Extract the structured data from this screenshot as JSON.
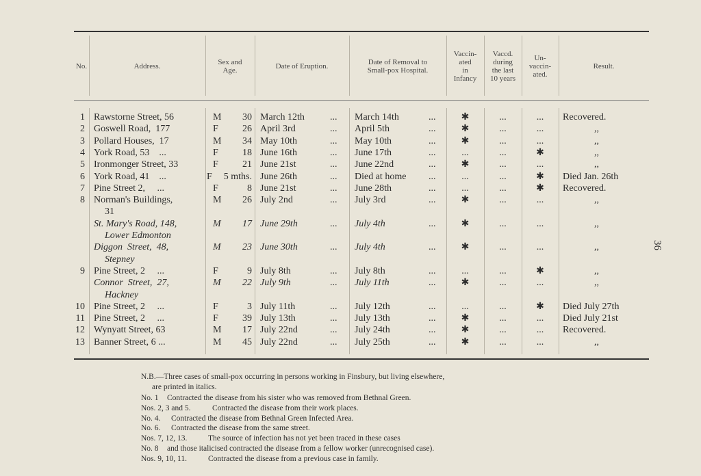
{
  "page_number": "36",
  "table": {
    "headers": [
      [
        "No."
      ],
      [
        "Address."
      ],
      [
        "Sex and",
        "Age."
      ],
      [
        "Date of  Eruption."
      ],
      [
        "Date of Removal to",
        "Small-pox Hospital."
      ],
      [
        "Vaccin-",
        "ated",
        "in",
        "Infancy"
      ],
      [
        "Vaccd.",
        "during",
        "the last",
        "10 years"
      ],
      [
        "Un-",
        "vaccin-",
        "ated."
      ],
      [
        "Result."
      ]
    ],
    "rows": [
      {
        "no": "1",
        "address": [
          "Rawstorne Street, 56"
        ],
        "sex": "M",
        "age": "30",
        "eruption": [
          "March 12th",
          "..."
        ],
        "removal": [
          "March 14th",
          "..."
        ],
        "infancy": "✱",
        "recent": "...",
        "unvaccinated": "...",
        "result": "Recovered.",
        "italic": false
      },
      {
        "no": "2",
        "address": [
          "Goswell Road,  177"
        ],
        "sex": "F",
        "age": "26",
        "eruption": [
          "April 3rd",
          "..."
        ],
        "removal": [
          "April 5th",
          "..."
        ],
        "infancy": "✱",
        "recent": "...",
        "unvaccinated": "...",
        "result": ",,",
        "italic": false
      },
      {
        "no": "3",
        "address": [
          "Pollard Houses,  17"
        ],
        "sex": "M",
        "age": "34",
        "eruption": [
          "May 10th",
          "..."
        ],
        "removal": [
          "May 10th",
          "..."
        ],
        "infancy": "✱",
        "recent": "...",
        "unvaccinated": "...",
        "result": ",,",
        "italic": false
      },
      {
        "no": "4",
        "address": [
          "York Road, 53    ..."
        ],
        "sex": "F",
        "age": "18",
        "eruption": [
          "June 16th",
          "..."
        ],
        "removal": [
          "June 17th",
          "..."
        ],
        "infancy": "...",
        "recent": "...",
        "unvaccinated": "✱",
        "result": ",,",
        "italic": false
      },
      {
        "no": "5",
        "address": [
          "Ironmonger Street, 33"
        ],
        "sex": "F",
        "age": "21",
        "eruption": [
          "June 21st",
          "..."
        ],
        "removal": [
          "June 22nd",
          "..."
        ],
        "infancy": "✱",
        "recent": "...",
        "unvaccinated": "...",
        "result": ",,",
        "italic": false
      },
      {
        "no": "6",
        "address": [
          "York Road, 41    ..."
        ],
        "sex": "F",
        "age": "5 mths.",
        "eruption": [
          "June 26th",
          "..."
        ],
        "removal": [
          "Died at home",
          "..."
        ],
        "infancy": "...",
        "recent": "...",
        "unvaccinated": "✱",
        "result": "Died Jan. 26th",
        "italic": false
      },
      {
        "no": "7",
        "address": [
          "Pine Street 2,     ..."
        ],
        "sex": "F",
        "age": "8",
        "eruption": [
          "June 21st",
          "..."
        ],
        "removal": [
          "June 28th",
          "..."
        ],
        "infancy": "...",
        "recent": "...",
        "unvaccinated": "✱",
        "result": "Recovered.",
        "italic": false
      },
      {
        "no": "8",
        "address": [
          "Norman's Buildings,",
          "31"
        ],
        "sex": "M",
        "age": "26",
        "eruption": [
          "July 2nd",
          "..."
        ],
        "removal": [
          "July 3rd",
          "..."
        ],
        "infancy": "✱",
        "recent": "...",
        "unvaccinated": "...",
        "result": ",,",
        "italic": false
      },
      {
        "no": null,
        "address": [
          "St. Mary's Road, 148,",
          "Lower Edmonton"
        ],
        "sex": "M",
        "age": "17",
        "eruption": [
          "June 29th",
          "..."
        ],
        "removal": [
          "July 4th",
          "..."
        ],
        "infancy": "✱",
        "recent": "...",
        "unvaccinated": "...",
        "result": ",,",
        "italic": true
      },
      {
        "no": null,
        "address": [
          "Diggon  Street,  48,",
          "Stepney"
        ],
        "sex": "M",
        "age": "23",
        "eruption": [
          "June 30th",
          "..."
        ],
        "removal": [
          "July 4th",
          "..."
        ],
        "infancy": "✱",
        "recent": "...",
        "unvaccinated": "...",
        "result": ",,",
        "italic": true
      },
      {
        "no": "9",
        "address": [
          "Pine Street, 2     ..."
        ],
        "sex": "F",
        "age": "9",
        "eruption": [
          "July 8th",
          "..."
        ],
        "removal": [
          "July 8th",
          "..."
        ],
        "infancy": "...",
        "recent": "...",
        "unvaccinated": "✱",
        "result": ",,",
        "italic": false
      },
      {
        "no": null,
        "address": [
          "Connor  Street,  27,",
          "Hackney"
        ],
        "sex": "M",
        "age": "22",
        "eruption": [
          "July 9th",
          "..."
        ],
        "removal": [
          "July 11th",
          "..."
        ],
        "infancy": "✱",
        "recent": "...",
        "unvaccinated": "...",
        "result": ",,",
        "italic": true
      },
      {
        "no": "10",
        "address": [
          "Pine Street, 2     ..."
        ],
        "sex": "F",
        "age": "3",
        "eruption": [
          "July 11th",
          "..."
        ],
        "removal": [
          "July 12th",
          "..."
        ],
        "infancy": "...",
        "recent": "...",
        "unvaccinated": "✱",
        "result": "Died July 27th",
        "italic": false
      },
      {
        "no": "11",
        "address": [
          "Pine Street, 2     ..."
        ],
        "sex": "F",
        "age": "39",
        "eruption": [
          "July 13th",
          "..."
        ],
        "removal": [
          "July 13th",
          "..."
        ],
        "infancy": "✱",
        "recent": "...",
        "unvaccinated": "...",
        "result": "Died July 21st",
        "italic": false
      },
      {
        "no": "12",
        "address": [
          "Wynyatt Street, 63"
        ],
        "sex": "M",
        "age": "17",
        "eruption": [
          "July 22nd",
          "..."
        ],
        "removal": [
          "July 24th",
          "..."
        ],
        "infancy": "✱",
        "recent": "...",
        "unvaccinated": "...",
        "result": "Recovered.",
        "italic": false
      },
      {
        "no": "13",
        "address": [
          "Banner Street, 6 ..."
        ],
        "sex": "M",
        "age": "45",
        "eruption": [
          "July 22nd",
          "..."
        ],
        "removal": [
          "July 25th",
          "..."
        ],
        "infancy": "✱",
        "recent": "...",
        "unvaccinated": "...",
        "result": ",,",
        "italic": false
      }
    ]
  },
  "notes": {
    "nb": [
      "N.B.—Three cases of small-pox occurring in persons working in Finsbury, but living elsewhere,",
      "are printed in italics."
    ],
    "items": [
      [
        "No. 1",
        "Contracted the disease from his sister who was removed from Bethnal Green."
      ],
      [
        "Nos. 2, 3 and 5.",
        "Contracted the disease from their work places."
      ],
      [
        "No. 4.",
        "Contracted the disease from Bethnal Green Infected Area."
      ],
      [
        "No. 6.",
        "Contracted the disease from the same street."
      ],
      [
        "Nos. 7, 12, 13.",
        "The source of infection has not yet been traced in these cases"
      ],
      [
        "No. 8",
        "and those italicised contracted the disease from a fellow worker (unrecognised case)."
      ],
      [
        "Nos. 9, 10, 11.",
        "Contracted the disease from a previous case in family."
      ]
    ]
  }
}
